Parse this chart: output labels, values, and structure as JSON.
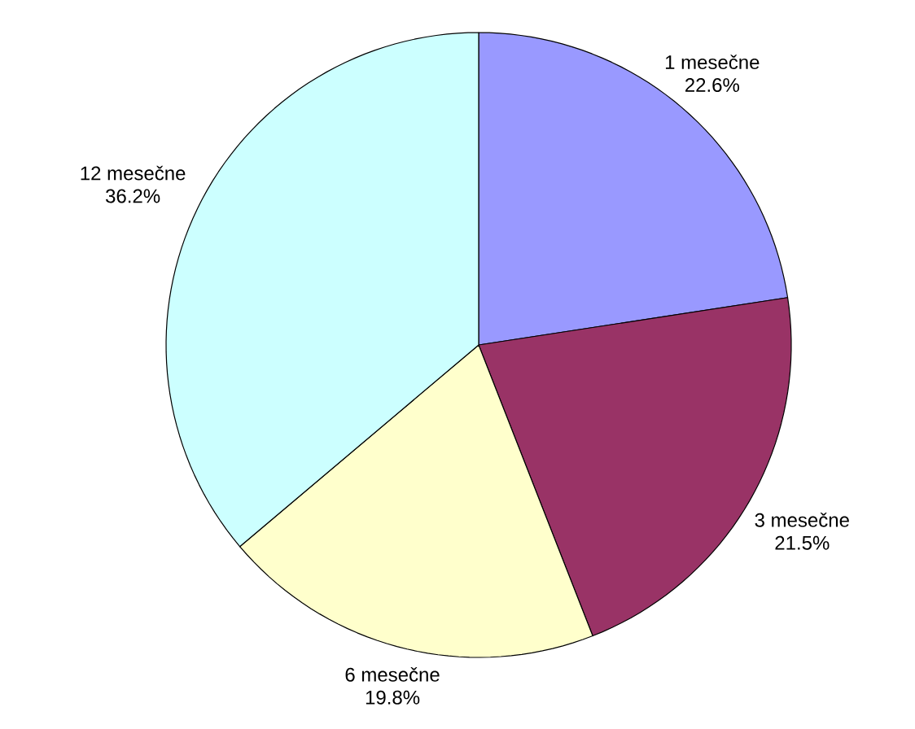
{
  "chart_data": {
    "type": "pie",
    "categories": [
      "1 mesečne",
      "3 mesečne",
      "6 mesečne",
      "12 mesečne"
    ],
    "values": [
      22.6,
      21.5,
      19.8,
      36.2
    ],
    "value_labels": [
      "22.6%",
      "21.5%",
      "19.8%",
      "36.2%"
    ],
    "colors": [
      "#9999ff",
      "#993366",
      "#ffffcc",
      "#ccffff"
    ]
  }
}
